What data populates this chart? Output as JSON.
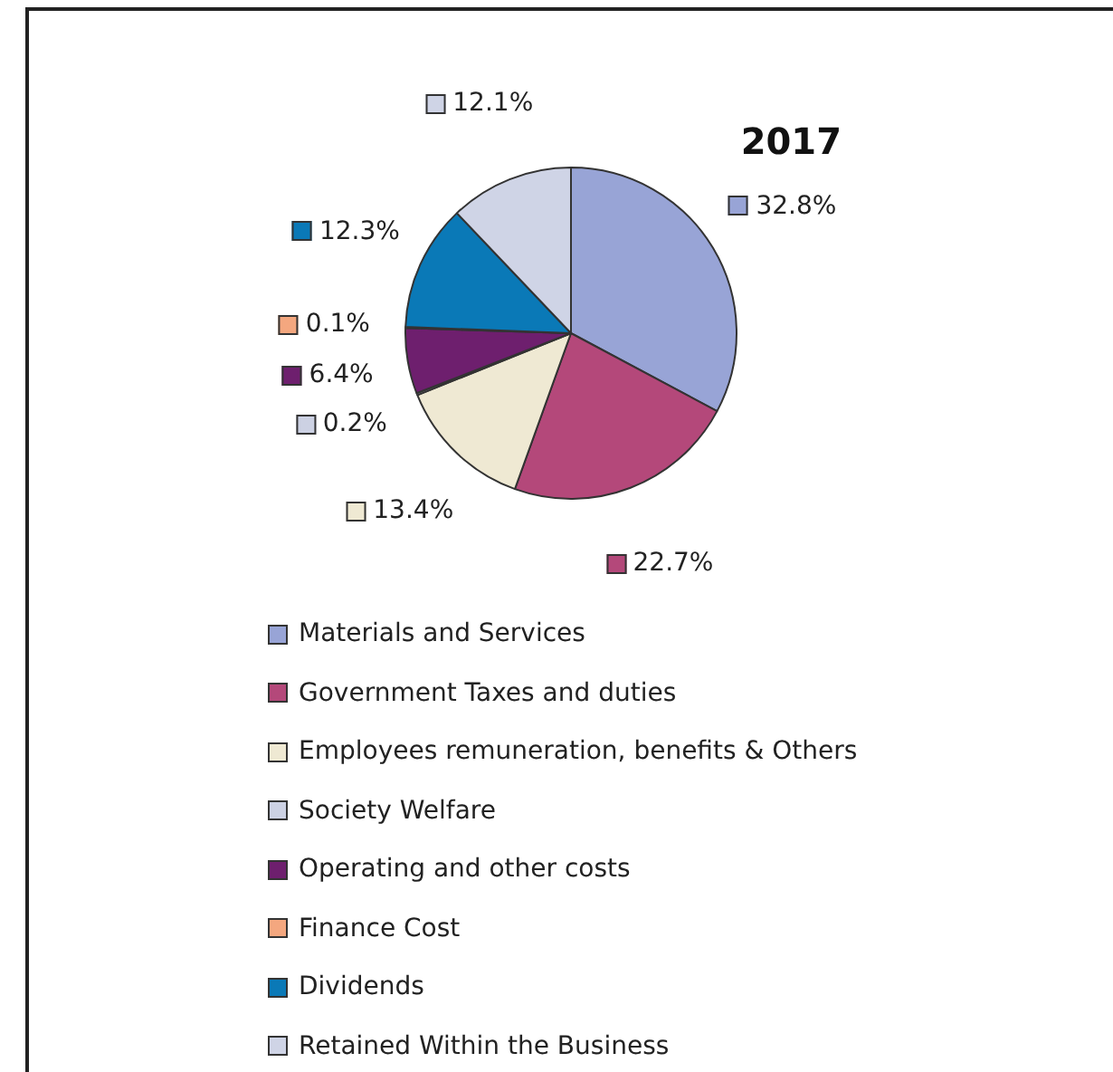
{
  "chart_data": {
    "type": "pie",
    "title": "2017",
    "categories": [
      "Materials and Services",
      "Government Taxes and duties",
      "Employees remuneration, benefits & Others",
      "Society Welfare",
      "Operating and other costs",
      "Finance Cost",
      "Dividends",
      "Retained Within the Business"
    ],
    "values": [
      32.8,
      22.7,
      13.4,
      0.2,
      6.4,
      0.1,
      12.3,
      12.1
    ],
    "value_labels": [
      "32.8%",
      "22.7%",
      "13.4%",
      "0.2%",
      "6.4%",
      "0.1%",
      "12.3%",
      "12.1%"
    ],
    "colors": [
      "#98a4d6",
      "#b4487a",
      "#efe9d3",
      "#ccd1e3",
      "#6e1f6e",
      "#f4a77f",
      "#0a79b7",
      "#cfd4e6"
    ],
    "legend": "bottom"
  }
}
